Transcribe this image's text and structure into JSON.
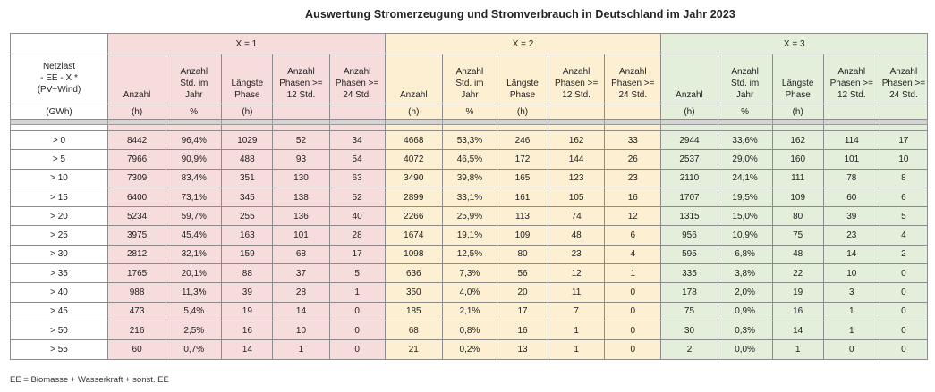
{
  "title": "Auswertung Stromerzeugung und Stromverbrauch in Deutschland im Jahr 2023",
  "groups": [
    "X = 1",
    "X = 2",
    "X = 3"
  ],
  "row_header": {
    "lines": [
      "Netzlast",
      "- EE - X *",
      "(PV+Wind)"
    ],
    "unit": "(GWh)"
  },
  "col_headers": [
    {
      "lines": [
        "Anzahl"
      ],
      "unit": "(h)"
    },
    {
      "lines": [
        "Anzahl",
        "Std. im",
        "Jahr"
      ],
      "unit": "%"
    },
    {
      "lines": [
        "Längste",
        "Phase"
      ],
      "unit": "(h)"
    },
    {
      "lines": [
        "Anzahl",
        "Phasen >=",
        "12 Std."
      ],
      "unit": ""
    },
    {
      "lines": [
        "Anzahl",
        "Phasen >=",
        "24 Std."
      ],
      "unit": ""
    }
  ],
  "rows": [
    {
      "label": "> 0",
      "g1": [
        "8442",
        "96,4%",
        "1029",
        "52",
        "34"
      ],
      "g2": [
        "4668",
        "53,3%",
        "246",
        "162",
        "33"
      ],
      "g3": [
        "2944",
        "33,6%",
        "162",
        "114",
        "17"
      ]
    },
    {
      "label": "> 5",
      "g1": [
        "7966",
        "90,9%",
        "488",
        "93",
        "54"
      ],
      "g2": [
        "4072",
        "46,5%",
        "172",
        "144",
        "26"
      ],
      "g3": [
        "2537",
        "29,0%",
        "160",
        "101",
        "10"
      ]
    },
    {
      "label": "> 10",
      "g1": [
        "7309",
        "83,4%",
        "351",
        "130",
        "63"
      ],
      "g2": [
        "3490",
        "39,8%",
        "165",
        "123",
        "23"
      ],
      "g3": [
        "2110",
        "24,1%",
        "111",
        "78",
        "8"
      ]
    },
    {
      "label": "> 15",
      "g1": [
        "6400",
        "73,1%",
        "345",
        "138",
        "52"
      ],
      "g2": [
        "2899",
        "33,1%",
        "161",
        "105",
        "16"
      ],
      "g3": [
        "1707",
        "19,5%",
        "109",
        "60",
        "6"
      ]
    },
    {
      "label": "> 20",
      "g1": [
        "5234",
        "59,7%",
        "255",
        "136",
        "40"
      ],
      "g2": [
        "2266",
        "25,9%",
        "113",
        "74",
        "12"
      ],
      "g3": [
        "1315",
        "15,0%",
        "80",
        "39",
        "5"
      ]
    },
    {
      "label": "> 25",
      "g1": [
        "3975",
        "45,4%",
        "163",
        "101",
        "28"
      ],
      "g2": [
        "1674",
        "19,1%",
        "109",
        "48",
        "6"
      ],
      "g3": [
        "956",
        "10,9%",
        "75",
        "23",
        "4"
      ]
    },
    {
      "label": "> 30",
      "g1": [
        "2812",
        "32,1%",
        "159",
        "68",
        "17"
      ],
      "g2": [
        "1098",
        "12,5%",
        "80",
        "23",
        "4"
      ],
      "g3": [
        "595",
        "6,8%",
        "48",
        "14",
        "2"
      ]
    },
    {
      "label": "> 35",
      "g1": [
        "1765",
        "20,1%",
        "88",
        "37",
        "5"
      ],
      "g2": [
        "636",
        "7,3%",
        "56",
        "12",
        "1"
      ],
      "g3": [
        "335",
        "3,8%",
        "22",
        "10",
        "0"
      ]
    },
    {
      "label": "> 40",
      "g1": [
        "988",
        "11,3%",
        "39",
        "28",
        "1"
      ],
      "g2": [
        "350",
        "4,0%",
        "20",
        "11",
        "0"
      ],
      "g3": [
        "178",
        "2,0%",
        "19",
        "3",
        "0"
      ]
    },
    {
      "label": "> 45",
      "g1": [
        "473",
        "5,4%",
        "19",
        "14",
        "0"
      ],
      "g2": [
        "185",
        "2,1%",
        "17",
        "7",
        "0"
      ],
      "g3": [
        "75",
        "0,9%",
        "16",
        "1",
        "0"
      ]
    },
    {
      "label": "> 50",
      "g1": [
        "216",
        "2,5%",
        "16",
        "10",
        "0"
      ],
      "g2": [
        "68",
        "0,8%",
        "16",
        "1",
        "0"
      ],
      "g3": [
        "30",
        "0,3%",
        "14",
        "1",
        "0"
      ]
    },
    {
      "label": "> 55",
      "g1": [
        "60",
        "0,7%",
        "14",
        "1",
        "0"
      ],
      "g2": [
        "21",
        "0,2%",
        "13",
        "1",
        "0"
      ],
      "g3": [
        "2",
        "0,0%",
        "1",
        "0",
        "0"
      ]
    }
  ],
  "footnote": "EE = Biomasse + Wasserkraft + sonst. EE",
  "colors": {
    "group1": "#f7dcdc",
    "group2": "#fdf0d2",
    "group3": "#e3eedb",
    "separator": "#d4d4d4"
  }
}
